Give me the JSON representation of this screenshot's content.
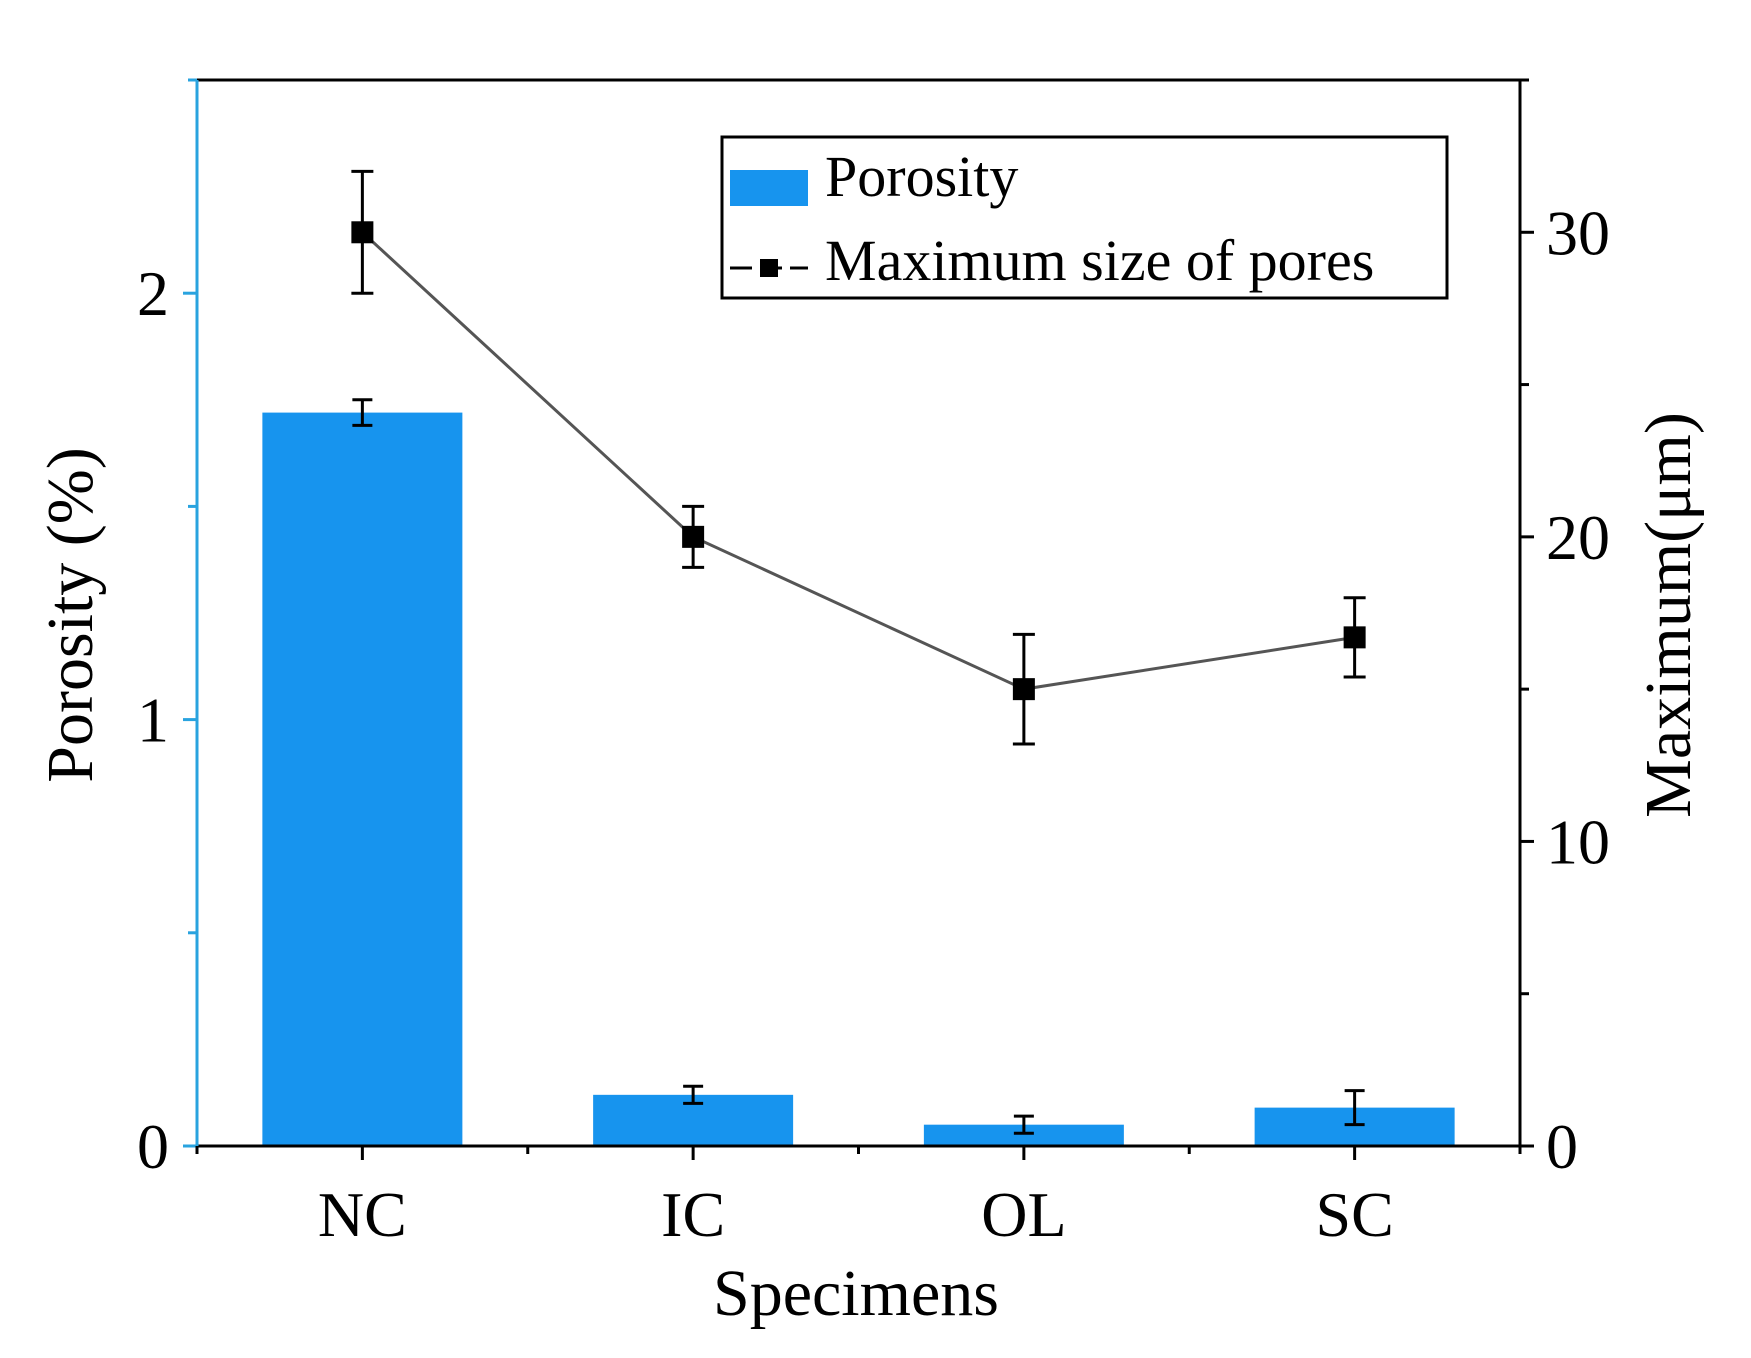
{
  "chart_data": {
    "type": "bar",
    "xlabel": "Specimens",
    "categories": [
      "NC",
      "IC",
      "OL",
      "SC"
    ],
    "colors": {
      "bar": "#1794EE",
      "left_axis": "#29A3DF",
      "line": "#555555",
      "marker": "#000000"
    },
    "y_left": {
      "label": "Porosity (%)",
      "ylim": [
        0,
        2.5
      ],
      "ticks": [
        0,
        1,
        2
      ],
      "minor_ticks": [
        0.5,
        1.5,
        2.5
      ]
    },
    "y_right": {
      "label": "Maximum(μm)",
      "ylim": [
        0,
        35
      ],
      "ticks": [
        0,
        10,
        20,
        30
      ],
      "minor_ticks": [
        5,
        15,
        25,
        35
      ]
    },
    "series": [
      {
        "name": "Porosity",
        "type": "bar",
        "axis": "left",
        "values": [
          1.72,
          0.12,
          0.05,
          0.09
        ],
        "errors": [
          0.03,
          0.02,
          0.02,
          0.04
        ]
      },
      {
        "name": "Maximum size of pores",
        "type": "line",
        "axis": "right",
        "values": [
          30.0,
          20.0,
          15.0,
          16.7
        ],
        "errors": [
          2.0,
          1.0,
          1.8,
          1.3
        ]
      }
    ],
    "legend": {
      "position": "top-right",
      "entries": [
        "Porosity",
        "Maximum size of pores"
      ]
    }
  }
}
